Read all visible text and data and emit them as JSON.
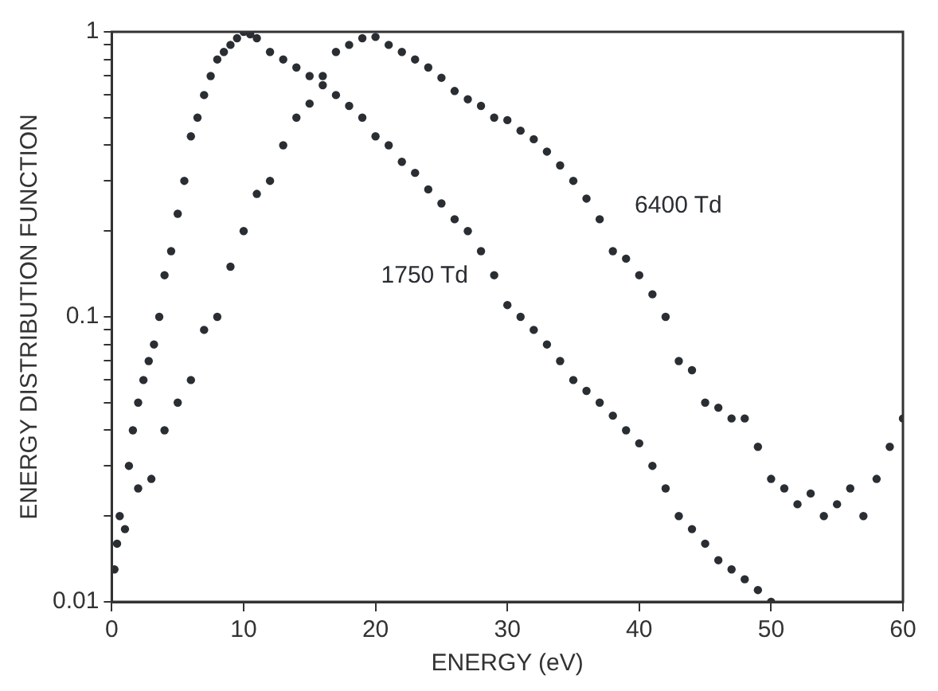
{
  "chart_data": {
    "type": "scatter",
    "xlabel": "ENERGY (eV)",
    "ylabel": "ENERGY DISTRIBUTION FUNCTION",
    "log": "y",
    "grid": false,
    "legend": false,
    "marker": "circle",
    "xlim": [
      0,
      60
    ],
    "xticks": [
      0,
      10,
      20,
      30,
      40,
      50,
      60
    ],
    "ylim": [
      0.01,
      1
    ],
    "yticks": [
      0.01,
      {
        "value": 0.02,
        "label": null
      },
      {
        "value": 0.03,
        "label": null
      },
      {
        "value": 0.04,
        "label": null
      },
      {
        "value": 0.05,
        "label": null
      },
      {
        "value": 0.06,
        "label": null
      },
      {
        "value": 0.07,
        "label": null
      },
      {
        "value": 0.08,
        "label": null
      },
      {
        "value": 0.09,
        "label": null
      },
      0.1,
      {
        "value": 0.2,
        "label": null
      },
      {
        "value": 0.3,
        "label": null
      },
      {
        "value": 0.4,
        "label": null
      },
      {
        "value": 0.5,
        "label": null
      },
      {
        "value": 0.6,
        "label": null
      },
      {
        "value": 0.7,
        "label": null
      },
      {
        "value": 0.8,
        "label": null
      },
      {
        "value": 0.9,
        "label": null
      },
      1
    ],
    "series": [
      {
        "name": "1750 Td",
        "color": "#2a2e33",
        "x": [
          0.2,
          0.4,
          0.6,
          1,
          1.3,
          1.6,
          2,
          2.4,
          2.8,
          3.2,
          3.6,
          4,
          4.5,
          5,
          5.5,
          6,
          6.5,
          7,
          7.5,
          8,
          8.5,
          9,
          9.5,
          10,
          10.5,
          11,
          12,
          13,
          14,
          15,
          16,
          17,
          18,
          19,
          20,
          21,
          22,
          23,
          24,
          25,
          26,
          27,
          28,
          29,
          30,
          31,
          32,
          33,
          34,
          35,
          36,
          37,
          38,
          39,
          40,
          41,
          42,
          43,
          44,
          45,
          46,
          47,
          48,
          49,
          50
        ],
        "values": [
          0.013,
          0.016,
          0.02,
          0.018,
          0.03,
          0.04,
          0.05,
          0.06,
          0.07,
          0.08,
          0.1,
          0.14,
          0.17,
          0.23,
          0.3,
          0.43,
          0.5,
          0.6,
          0.7,
          0.8,
          0.85,
          0.9,
          0.95,
          1,
          0.98,
          0.95,
          0.85,
          0.8,
          0.75,
          0.7,
          0.65,
          0.6,
          0.55,
          0.5,
          0.43,
          0.4,
          0.35,
          0.32,
          0.28,
          0.25,
          0.22,
          0.2,
          0.17,
          0.14,
          0.11,
          0.1,
          0.09,
          0.08,
          0.07,
          0.06,
          0.055,
          0.05,
          0.045,
          0.04,
          0.036,
          0.03,
          0.025,
          0.02,
          0.018,
          0.016,
          0.014,
          0.013,
          0.012,
          0.011,
          0.01
        ]
      },
      {
        "name": "6400 Td",
        "color": "#2a2e33",
        "x": [
          2,
          3,
          4,
          5,
          6,
          7,
          8,
          9,
          10,
          11,
          12,
          13,
          14,
          15,
          16,
          17,
          18,
          19,
          20,
          21,
          22,
          23,
          24,
          25,
          26,
          27,
          28,
          29,
          30,
          31,
          32,
          33,
          34,
          35,
          36,
          37,
          38,
          39,
          40,
          41,
          42,
          43,
          44,
          45,
          46,
          47,
          48,
          49,
          50,
          51,
          52,
          53,
          54,
          55,
          56,
          57,
          58,
          59,
          60
        ],
        "values": [
          0.025,
          0.027,
          0.04,
          0.05,
          0.06,
          0.09,
          0.1,
          0.15,
          0.2,
          0.27,
          0.3,
          0.4,
          0.5,
          0.56,
          0.7,
          0.85,
          0.9,
          0.95,
          0.96,
          0.9,
          0.85,
          0.8,
          0.75,
          0.69,
          0.62,
          0.58,
          0.55,
          0.5,
          0.49,
          0.45,
          0.42,
          0.38,
          0.34,
          0.3,
          0.26,
          0.22,
          0.17,
          0.16,
          0.14,
          0.12,
          0.1,
          0.07,
          0.065,
          0.05,
          0.048,
          0.044,
          0.044,
          0.035,
          0.027,
          0.025,
          0.022,
          0.024,
          0.02,
          0.022,
          0.025,
          0.02,
          0.027,
          0.035,
          0.044
        ]
      }
    ]
  }
}
